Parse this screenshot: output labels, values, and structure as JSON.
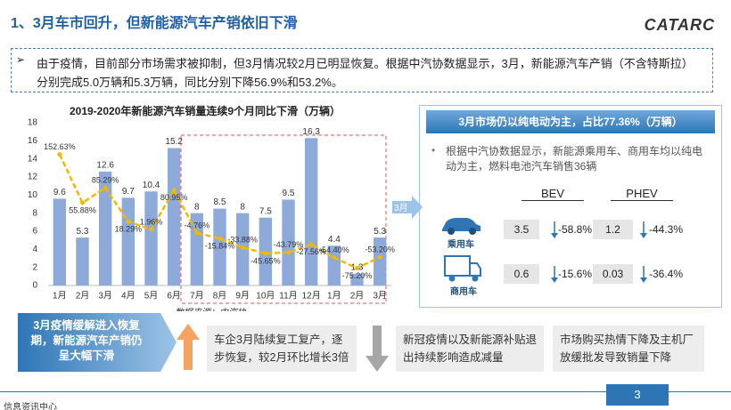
{
  "title": "1、3月车市回升，但新能源汽车产销依旧下滑",
  "logo": "CATARC",
  "intro": "由于疫情，目前部分市场需求被抑制，但3月情况较2月已明显恢复。根据中汽协数据显示，3月，新能源汽车产销（不含特斯拉）分别完成5.0万辆和5.3万辆，同比分别下降56.9%和53.2%。",
  "chart_data": {
    "type": "bar",
    "title": "2019-2020年新能源汽车销量连续9个月同比下滑（万辆）",
    "categories": [
      "1月",
      "2月",
      "3月",
      "4月",
      "5月",
      "6月",
      "7月",
      "8月",
      "9月",
      "10月",
      "11月",
      "12月",
      "1月",
      "2月",
      "3月"
    ],
    "series": [
      {
        "type": "bar",
        "color": "#8eaadb",
        "values": [
          9.6,
          5.3,
          12.6,
          9.7,
          10.4,
          15.2,
          8,
          8.5,
          8,
          7.5,
          9.5,
          16.3,
          4.4,
          1.3,
          5.3
        ]
      },
      {
        "type": "line",
        "axis": "y2",
        "color": "#f4b800",
        "values": [
          152.63,
          55.88,
          85.29,
          18.29,
          1.96,
          80.95,
          -4.76,
          -15.84,
          -33.88,
          -45.65,
          -43.79,
          -27.56,
          -54.4,
          -75.2,
          -53.2
        ],
        "value_labels": [
          "152.63%",
          "55.88%",
          "85.29%",
          "18.29%",
          "1.96%",
          "80.95%",
          "-4.76%",
          "-15.84%",
          "-33.88%",
          "-45.65%",
          "-43.79%",
          "-27.56%",
          "-54.40%",
          "-75.20%",
          "-53.20%"
        ]
      }
    ],
    "ylim": [
      0,
      18
    ],
    "yticks": [
      0,
      2,
      4,
      6,
      8,
      10,
      12,
      14,
      16,
      18
    ],
    "y2lim": [
      -110,
      216
    ],
    "grid": false,
    "source": "数据来源：中汽协"
  },
  "right_panel": {
    "header": "3月市场仍以纯电动为主，占比77.36%（万辆）",
    "bullet": "根据中汽协数据显示，新能源乘用车、商用车均以纯电动为主，燃料电池汽车销售36辆",
    "arrow_label": "3月",
    "columns": [
      "BEV",
      "PHEV"
    ],
    "rows": [
      {
        "label": "乘用车",
        "cells": [
          "3.5",
          "-58.8%",
          "1.2",
          "-44.3%"
        ]
      },
      {
        "label": "商用车",
        "cells": [
          "0.6",
          "-15.6%",
          "0.03",
          "-36.4%"
        ]
      }
    ]
  },
  "bottom": {
    "summary": "3月疫情缓解进入恢复期，新能源汽车产销仍呈大幅下滑",
    "points": [
      "车企3月陆续复工复产，逐步恢复，较2月环比增长3倍",
      "新冠疫情以及新能源补贴退出持续影响造成减量",
      "市场购买热情下降及主机厂放缓批发导致销量下降"
    ]
  },
  "footer": "信息资讯中心",
  "page_number": "3"
}
